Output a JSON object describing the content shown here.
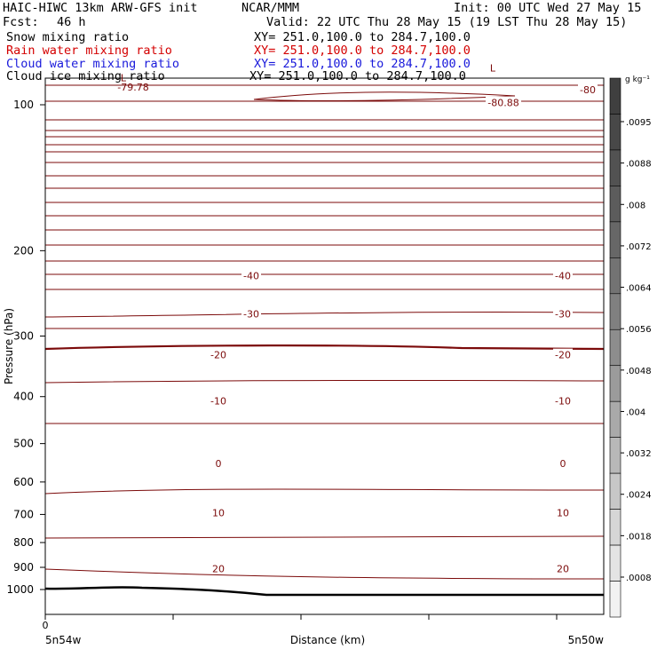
{
  "header": {
    "title": "HAIC-HIWC 13km ARW-GFS init",
    "org": "NCAR/MMM",
    "init": "Init: 00 UTC Wed 27 May 15",
    "fcst_label": "Fcst:",
    "fcst_value": "46 h",
    "valid": "Valid: 22 UTC Thu 28 May 15 (19 LST Thu 28 May 15)"
  },
  "fields": [
    {
      "name": "Snow mixing ratio",
      "xy": "XY= 251.0,100.0 to 284.7,100.0",
      "color": "#000000"
    },
    {
      "name": "Rain water mixing ratio",
      "xy": "XY= 251.0,100.0 to 284.7,100.0",
      "color": "#d40000"
    },
    {
      "name": "Cloud water mixing ratio",
      "xy": "XY= 251.0,100.0 to 284.7,100.0",
      "color": "#1a1adb"
    },
    {
      "name": "Cloud ice mixing ratio",
      "xy": "XY= 251.0,100.0 to 284.7,100.0",
      "color": "#000000"
    }
  ],
  "chart_data": {
    "type": "line",
    "ylabel": "Pressure (hPa)",
    "xlabel": "Distance (km)",
    "x_tick_labels": [
      "0"
    ],
    "x_endpoints": [
      "5n54w",
      "5n50w"
    ],
    "y_ticks": [
      100,
      200,
      300,
      400,
      500,
      600,
      700,
      800,
      900,
      1000
    ],
    "y_range_hPa": [
      1050,
      60
    ],
    "y_scale": "log",
    "contour_color": "#7b0a0a",
    "isotherm_labels": [
      {
        "value": "-40",
        "pressure": 225
      },
      {
        "value": "-30",
        "pressure": 270
      },
      {
        "value": "-20",
        "pressure": 328
      },
      {
        "value": "-10",
        "pressure": 408
      },
      {
        "value": "0",
        "pressure": 550
      },
      {
        "value": "10",
        "pressure": 695
      },
      {
        "value": "20",
        "pressure": 905
      }
    ],
    "extra_labels": [
      {
        "value": "-80",
        "pressure": 93
      },
      {
        "value": "L",
        "pressure": 88
      },
      {
        "value": "-79.78",
        "pressure": 92
      },
      {
        "value": "L",
        "pressure": 84
      },
      {
        "value": "-80.88",
        "pressure": 99
      }
    ],
    "colorbar": {
      "unit": "g kg⁻¹",
      "labels": [
        ".0095",
        ".0088",
        ".008",
        ".0072",
        ".0064",
        ".0056",
        ".0048",
        ".004",
        ".0032",
        ".0024",
        ".0018",
        ".0008"
      ],
      "colors": [
        "#3f3f3f",
        "#484848",
        "#525252",
        "#5c5c5c",
        "#676767",
        "#737373",
        "#808080",
        "#8d8d8d",
        "#9b9b9b",
        "#a9a9a9",
        "#b8b8b8",
        "#c7c7c7",
        "#d6d6d6",
        "#e4e4e4",
        "#f2f2f2"
      ]
    }
  }
}
